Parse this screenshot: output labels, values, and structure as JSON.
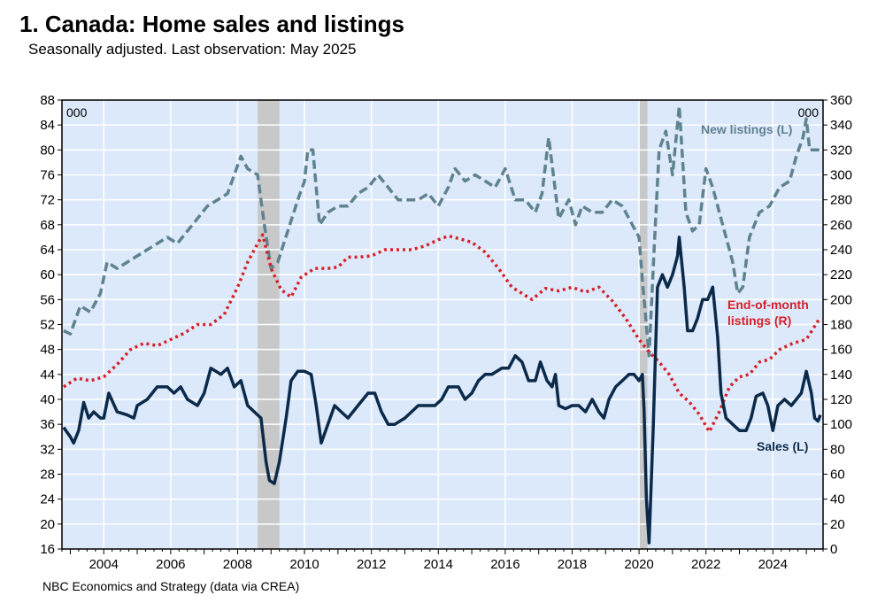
{
  "chart_data": {
    "type": "line",
    "title": "1. Canada: Home sales and listings",
    "subtitle": "Seasonally adjusted. Last observation: May 2025",
    "source": "NBC Economics and Strategy (data via CREA)",
    "left_axis": {
      "unit": "000",
      "min": 16,
      "max": 88,
      "ticks": [
        "88",
        "84",
        "80",
        "76",
        "72",
        "68",
        "64",
        "60",
        "56",
        "52",
        "48",
        "44",
        "40",
        "36",
        "32",
        "28",
        "24",
        "20",
        "16"
      ]
    },
    "right_axis": {
      "unit": "000",
      "min": 0,
      "max": 360,
      "ticks": [
        "360",
        "340",
        "320",
        "300",
        "280",
        "260",
        "240",
        "220",
        "200",
        "180",
        "160",
        "140",
        "120",
        "100",
        "80",
        "60",
        "40",
        "20",
        "0"
      ]
    },
    "x_axis": {
      "min": 2002.75,
      "max": 2025.5,
      "tick_labels": [
        "2004",
        "2006",
        "2008",
        "2010",
        "2012",
        "2014",
        "2016",
        "2018",
        "2020",
        "2022",
        "2024"
      ]
    },
    "recessions": [
      {
        "start": 2008.6,
        "end": 2009.25
      },
      {
        "start": 2020.0,
        "end": 2020.25
      }
    ],
    "colors": {
      "plot_bg": "#dce9fa",
      "recession": "#c8c8c8",
      "grid": "#ffffff",
      "sales": "#0b2a4a",
      "new_listings": "#5f8291",
      "end_of_month": "#d7212a"
    },
    "series": [
      {
        "name": "New listings (L)",
        "axis": "left",
        "style": "dashed",
        "points": [
          [
            2002.8,
            51
          ],
          [
            2003.0,
            50.5
          ],
          [
            2003.3,
            55
          ],
          [
            2003.6,
            54
          ],
          [
            2003.9,
            57
          ],
          [
            2004.1,
            62
          ],
          [
            2004.4,
            61
          ],
          [
            2004.7,
            62
          ],
          [
            2005.0,
            63
          ],
          [
            2005.3,
            64
          ],
          [
            2005.6,
            65
          ],
          [
            2005.9,
            66
          ],
          [
            2006.2,
            65
          ],
          [
            2006.5,
            67
          ],
          [
            2006.8,
            69
          ],
          [
            2007.1,
            71
          ],
          [
            2007.4,
            72
          ],
          [
            2007.7,
            73
          ],
          [
            2007.9,
            76
          ],
          [
            2008.1,
            79
          ],
          [
            2008.3,
            77
          ],
          [
            2008.6,
            76
          ],
          [
            2008.8,
            68
          ],
          [
            2009.0,
            61
          ],
          [
            2009.2,
            62
          ],
          [
            2009.5,
            67
          ],
          [
            2009.8,
            72
          ],
          [
            2010.0,
            75
          ],
          [
            2010.1,
            80
          ],
          [
            2010.25,
            80
          ],
          [
            2010.45,
            68
          ],
          [
            2010.7,
            70
          ],
          [
            2011.0,
            71
          ],
          [
            2011.3,
            71
          ],
          [
            2011.6,
            73
          ],
          [
            2011.9,
            74
          ],
          [
            2012.2,
            76
          ],
          [
            2012.5,
            74
          ],
          [
            2012.8,
            72
          ],
          [
            2013.1,
            72
          ],
          [
            2013.4,
            72
          ],
          [
            2013.7,
            73
          ],
          [
            2014.0,
            71
          ],
          [
            2014.3,
            74
          ],
          [
            2014.5,
            77
          ],
          [
            2014.8,
            75
          ],
          [
            2015.1,
            76
          ],
          [
            2015.4,
            75
          ],
          [
            2015.7,
            74
          ],
          [
            2016.0,
            77
          ],
          [
            2016.3,
            72
          ],
          [
            2016.6,
            72
          ],
          [
            2016.9,
            70
          ],
          [
            2017.1,
            73
          ],
          [
            2017.3,
            82
          ],
          [
            2017.6,
            69
          ],
          [
            2017.9,
            72
          ],
          [
            2018.1,
            68
          ],
          [
            2018.3,
            71
          ],
          [
            2018.6,
            70
          ],
          [
            2018.9,
            70
          ],
          [
            2019.2,
            72
          ],
          [
            2019.5,
            71
          ],
          [
            2019.8,
            68
          ],
          [
            2020.0,
            66
          ],
          [
            2020.1,
            59
          ],
          [
            2020.3,
            47
          ],
          [
            2020.45,
            64
          ],
          [
            2020.6,
            80
          ],
          [
            2020.8,
            83
          ],
          [
            2021.0,
            76
          ],
          [
            2021.2,
            87
          ],
          [
            2021.4,
            70
          ],
          [
            2021.6,
            67
          ],
          [
            2021.8,
            68
          ],
          [
            2022.0,
            77
          ],
          [
            2022.2,
            74
          ],
          [
            2022.4,
            70
          ],
          [
            2022.6,
            66
          ],
          [
            2022.8,
            62
          ],
          [
            2022.95,
            57
          ],
          [
            2023.1,
            58
          ],
          [
            2023.3,
            66
          ],
          [
            2023.6,
            70
          ],
          [
            2023.9,
            71
          ],
          [
            2024.2,
            74
          ],
          [
            2024.5,
            75
          ],
          [
            2024.7,
            79
          ],
          [
            2024.9,
            82
          ],
          [
            2025.0,
            85
          ],
          [
            2025.1,
            80
          ],
          [
            2025.3,
            80
          ],
          [
            2025.42,
            80
          ]
        ]
      },
      {
        "name": "End-of-month listings (R)",
        "axis": "right",
        "style": "dotted",
        "points": [
          [
            2002.8,
            130
          ],
          [
            2003.2,
            137
          ],
          [
            2003.6,
            135
          ],
          [
            2004.0,
            138
          ],
          [
            2004.4,
            148
          ],
          [
            2004.8,
            160
          ],
          [
            2005.2,
            165
          ],
          [
            2005.6,
            163
          ],
          [
            2006.0,
            168
          ],
          [
            2006.4,
            173
          ],
          [
            2006.8,
            180
          ],
          [
            2007.2,
            180
          ],
          [
            2007.6,
            188
          ],
          [
            2008.0,
            210
          ],
          [
            2008.3,
            230
          ],
          [
            2008.6,
            245
          ],
          [
            2008.75,
            252
          ],
          [
            2009.0,
            225
          ],
          [
            2009.3,
            208
          ],
          [
            2009.6,
            202
          ],
          [
            2009.9,
            218
          ],
          [
            2010.3,
            225
          ],
          [
            2010.7,
            225
          ],
          [
            2011.0,
            226
          ],
          [
            2011.3,
            234
          ],
          [
            2011.6,
            234
          ],
          [
            2012.0,
            235
          ],
          [
            2012.4,
            240
          ],
          [
            2012.8,
            240
          ],
          [
            2013.2,
            240
          ],
          [
            2013.6,
            243
          ],
          [
            2014.0,
            248
          ],
          [
            2014.3,
            251
          ],
          [
            2014.6,
            249
          ],
          [
            2015.0,
            246
          ],
          [
            2015.4,
            238
          ],
          [
            2015.8,
            225
          ],
          [
            2016.2,
            210
          ],
          [
            2016.5,
            205
          ],
          [
            2016.8,
            200
          ],
          [
            2017.2,
            209
          ],
          [
            2017.6,
            207
          ],
          [
            2018.0,
            210
          ],
          [
            2018.4,
            206
          ],
          [
            2018.8,
            210
          ],
          [
            2019.2,
            199
          ],
          [
            2019.6,
            185
          ],
          [
            2020.0,
            168
          ],
          [
            2020.3,
            158
          ],
          [
            2020.6,
            150
          ],
          [
            2020.9,
            140
          ],
          [
            2021.2,
            125
          ],
          [
            2021.5,
            118
          ],
          [
            2021.8,
            108
          ],
          [
            2022.1,
            94
          ],
          [
            2022.4,
            110
          ],
          [
            2022.7,
            130
          ],
          [
            2023.0,
            138
          ],
          [
            2023.3,
            140
          ],
          [
            2023.6,
            150
          ],
          [
            2023.9,
            152
          ],
          [
            2024.2,
            160
          ],
          [
            2024.6,
            165
          ],
          [
            2025.0,
            168
          ],
          [
            2025.4,
            185
          ]
        ]
      },
      {
        "name": "Sales (L)",
        "axis": "left",
        "style": "solid",
        "points": [
          [
            2002.8,
            35.5
          ],
          [
            2003.0,
            34
          ],
          [
            2003.1,
            33
          ],
          [
            2003.25,
            35
          ],
          [
            2003.4,
            39.5
          ],
          [
            2003.55,
            37
          ],
          [
            2003.7,
            38
          ],
          [
            2003.9,
            37
          ],
          [
            2004.0,
            37
          ],
          [
            2004.15,
            41
          ],
          [
            2004.4,
            38
          ],
          [
            2004.7,
            37.5
          ],
          [
            2004.9,
            37
          ],
          [
            2005.0,
            39
          ],
          [
            2005.3,
            40
          ],
          [
            2005.6,
            42
          ],
          [
            2005.9,
            42
          ],
          [
            2006.1,
            41
          ],
          [
            2006.3,
            42
          ],
          [
            2006.5,
            40
          ],
          [
            2006.8,
            39
          ],
          [
            2007.0,
            41
          ],
          [
            2007.2,
            45
          ],
          [
            2007.5,
            44
          ],
          [
            2007.7,
            45
          ],
          [
            2007.9,
            42
          ],
          [
            2008.1,
            43
          ],
          [
            2008.3,
            39
          ],
          [
            2008.5,
            38
          ],
          [
            2008.7,
            37
          ],
          [
            2008.85,
            30
          ],
          [
            2008.95,
            27
          ],
          [
            2009.1,
            26.5
          ],
          [
            2009.25,
            30
          ],
          [
            2009.45,
            37
          ],
          [
            2009.6,
            43
          ],
          [
            2009.8,
            44.5
          ],
          [
            2010.0,
            44.5
          ],
          [
            2010.2,
            44
          ],
          [
            2010.35,
            39
          ],
          [
            2010.5,
            33
          ],
          [
            2010.7,
            36
          ],
          [
            2010.9,
            39
          ],
          [
            2011.1,
            38
          ],
          [
            2011.3,
            37
          ],
          [
            2011.6,
            39
          ],
          [
            2011.9,
            41
          ],
          [
            2012.1,
            41
          ],
          [
            2012.3,
            38
          ],
          [
            2012.5,
            36
          ],
          [
            2012.7,
            36
          ],
          [
            2013.0,
            37
          ],
          [
            2013.2,
            38
          ],
          [
            2013.4,
            39
          ],
          [
            2013.6,
            39
          ],
          [
            2013.9,
            39
          ],
          [
            2014.1,
            40
          ],
          [
            2014.3,
            42
          ],
          [
            2014.6,
            42
          ],
          [
            2014.8,
            40
          ],
          [
            2015.0,
            41
          ],
          [
            2015.2,
            43
          ],
          [
            2015.4,
            44
          ],
          [
            2015.6,
            44
          ],
          [
            2015.9,
            45
          ],
          [
            2016.1,
            45
          ],
          [
            2016.3,
            47
          ],
          [
            2016.5,
            46
          ],
          [
            2016.7,
            43
          ],
          [
            2016.9,
            43
          ],
          [
            2017.05,
            46
          ],
          [
            2017.25,
            43
          ],
          [
            2017.4,
            42
          ],
          [
            2017.5,
            44
          ],
          [
            2017.6,
            39
          ],
          [
            2017.8,
            38.5
          ],
          [
            2018.0,
            39
          ],
          [
            2018.2,
            39
          ],
          [
            2018.4,
            38
          ],
          [
            2018.6,
            40
          ],
          [
            2018.8,
            38
          ],
          [
            2018.95,
            37
          ],
          [
            2019.1,
            40
          ],
          [
            2019.3,
            42
          ],
          [
            2019.5,
            43
          ],
          [
            2019.7,
            44
          ],
          [
            2019.85,
            44
          ],
          [
            2020.0,
            43
          ],
          [
            2020.1,
            44
          ],
          [
            2020.15,
            38
          ],
          [
            2020.22,
            24
          ],
          [
            2020.3,
            17
          ],
          [
            2020.42,
            35
          ],
          [
            2020.55,
            58
          ],
          [
            2020.7,
            60
          ],
          [
            2020.85,
            58
          ],
          [
            2021.0,
            60
          ],
          [
            2021.15,
            63
          ],
          [
            2021.2,
            66
          ],
          [
            2021.35,
            58
          ],
          [
            2021.45,
            51
          ],
          [
            2021.6,
            51
          ],
          [
            2021.75,
            53
          ],
          [
            2021.9,
            56
          ],
          [
            2022.05,
            56
          ],
          [
            2022.2,
            58
          ],
          [
            2022.35,
            50
          ],
          [
            2022.45,
            41
          ],
          [
            2022.6,
            37
          ],
          [
            2022.8,
            36
          ],
          [
            2023.0,
            35
          ],
          [
            2023.2,
            35
          ],
          [
            2023.35,
            37
          ],
          [
            2023.5,
            40.5
          ],
          [
            2023.7,
            41
          ],
          [
            2023.85,
            39
          ],
          [
            2024.0,
            35
          ],
          [
            2024.15,
            39
          ],
          [
            2024.35,
            40
          ],
          [
            2024.55,
            39
          ],
          [
            2024.7,
            40
          ],
          [
            2024.85,
            41
          ],
          [
            2025.0,
            44.5
          ],
          [
            2025.15,
            41
          ],
          [
            2025.25,
            37
          ],
          [
            2025.35,
            36.5
          ],
          [
            2025.42,
            37.5
          ]
        ]
      }
    ],
    "labels": {
      "new_listings": "New listings (L)",
      "end_of_month_1": "End-of-month",
      "end_of_month_2": "listings (R)",
      "sales": "Sales (L)"
    }
  }
}
